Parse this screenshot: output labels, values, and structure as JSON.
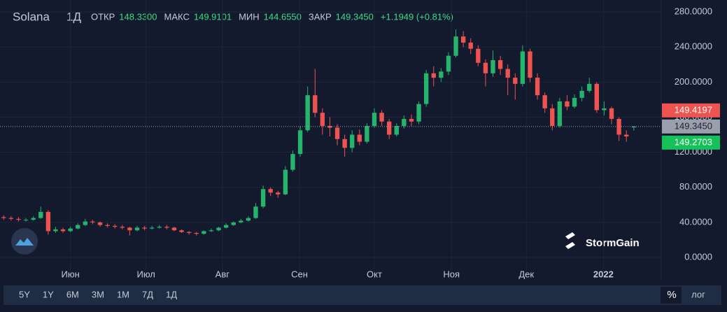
{
  "chart_data": {
    "type": "candlestick",
    "title": "Solana",
    "interval": "1Д",
    "header": [
      {
        "label": "ОТКР",
        "value": "148.3300"
      },
      {
        "label": "МАКС",
        "value": "149.9101"
      },
      {
        "label": "МИН",
        "value": "144.6550"
      },
      {
        "label": "ЗАКР",
        "value": "149.3450"
      }
    ],
    "change": "+1.1949 (+0.81%)",
    "up_color": "#26b36b",
    "down_color": "#ef5350",
    "open": [
      46,
      45,
      44,
      43,
      43,
      45,
      52,
      30,
      32,
      30,
      33,
      37,
      41,
      40,
      37,
      36,
      35,
      34,
      31,
      34,
      33,
      34,
      35,
      34,
      31,
      29,
      28,
      27,
      30,
      31,
      34,
      37,
      40,
      42,
      45,
      58,
      78,
      74,
      72,
      100,
      118,
      145,
      185,
      165,
      150,
      148,
      135,
      125,
      140,
      132,
      150,
      165,
      155,
      140,
      150,
      158,
      155,
      175,
      210,
      205,
      212,
      230,
      252,
      245,
      238,
      222,
      210,
      225,
      215,
      205,
      198,
      235,
      205,
      185,
      170,
      150,
      178,
      172,
      182,
      190,
      198,
      168,
      170,
      158,
      140,
      148.33
    ],
    "high": [
      48,
      47,
      46,
      45,
      47,
      58,
      54,
      35,
      34,
      35,
      39,
      44,
      43,
      41,
      39,
      38,
      37,
      35,
      36,
      36,
      36,
      37,
      37,
      35,
      32,
      30,
      29,
      31,
      33,
      35,
      39,
      41,
      44,
      47,
      62,
      82,
      80,
      76,
      104,
      122,
      150,
      195,
      215,
      170,
      160,
      152,
      140,
      145,
      146,
      153,
      170,
      168,
      158,
      153,
      162,
      163,
      178,
      214,
      218,
      216,
      234,
      260,
      258,
      250,
      242,
      226,
      236,
      230,
      220,
      210,
      242,
      238,
      210,
      188,
      175,
      182,
      185,
      186,
      195,
      205,
      200,
      178,
      172,
      160,
      145,
      149.9101
    ],
    "low": [
      43,
      42,
      41,
      41,
      42,
      44,
      26,
      28,
      28,
      29,
      32,
      36,
      38,
      35,
      34,
      33,
      32,
      25,
      30,
      31,
      32,
      33,
      32,
      30,
      28,
      26,
      25,
      26,
      29,
      30,
      33,
      36,
      39,
      41,
      44,
      56,
      70,
      68,
      71,
      98,
      115,
      143,
      160,
      140,
      138,
      128,
      115,
      120,
      128,
      130,
      148,
      150,
      135,
      138,
      147,
      150,
      152,
      172,
      195,
      200,
      208,
      228,
      240,
      232,
      218,
      195,
      206,
      208,
      185,
      180,
      195,
      200,
      180,
      165,
      145,
      148,
      168,
      170,
      178,
      188,
      165,
      162,
      152,
      133,
      132,
      144.655
    ],
    "close": [
      45,
      44,
      43,
      43,
      45,
      52,
      30,
      32,
      30,
      33,
      37,
      41,
      40,
      37,
      36,
      35,
      34,
      31,
      34,
      33,
      34,
      35,
      34,
      31,
      29,
      28,
      27,
      30,
      31,
      34,
      37,
      40,
      42,
      45,
      58,
      78,
      74,
      72,
      100,
      118,
      145,
      185,
      165,
      150,
      148,
      135,
      125,
      140,
      132,
      150,
      165,
      155,
      140,
      150,
      158,
      155,
      175,
      210,
      205,
      212,
      230,
      252,
      245,
      238,
      222,
      210,
      225,
      215,
      205,
      198,
      235,
      205,
      185,
      170,
      150,
      178,
      172,
      182,
      190,
      198,
      168,
      170,
      158,
      140,
      138,
      149.345
    ],
    "xlim": [
      -0.5,
      88.7
    ],
    "xticks": [
      {
        "value": 9,
        "label": "Июн"
      },
      {
        "value": 19.2,
        "label": "Июл"
      },
      {
        "value": 29.5,
        "label": "Авг"
      },
      {
        "value": 39.9,
        "label": "Сен"
      },
      {
        "value": 50,
        "label": "Окт"
      },
      {
        "value": 60.4,
        "label": "Ноя"
      },
      {
        "value": 70.5,
        "label": "Дек"
      },
      {
        "value": 80.9,
        "label": "2022"
      }
    ],
    "ylim": [
      -25.5,
      293.6
    ],
    "yticks": [
      {
        "value": 0,
        "label": "0.0000"
      },
      {
        "value": 40,
        "label": "40.0000"
      },
      {
        "value": 80,
        "label": "80.0000"
      },
      {
        "value": 120,
        "label": "120.0000"
      },
      {
        "value": 160,
        "label": "160.0000"
      },
      {
        "value": 200,
        "label": "200.0000"
      },
      {
        "value": 240,
        "label": "240.0000"
      },
      {
        "value": 280,
        "label": "280.0000"
      }
    ],
    "ask": 149.4197,
    "last": {
      "value": 149.345,
      "label": "149.3450"
    },
    "bid": 149.2703
  },
  "brand": "StormGain",
  "ranges": [
    "5Y",
    "1Y",
    "6M",
    "3M",
    "1M",
    "7Д",
    "1Д"
  ],
  "toggles": [
    "%",
    "лог"
  ]
}
